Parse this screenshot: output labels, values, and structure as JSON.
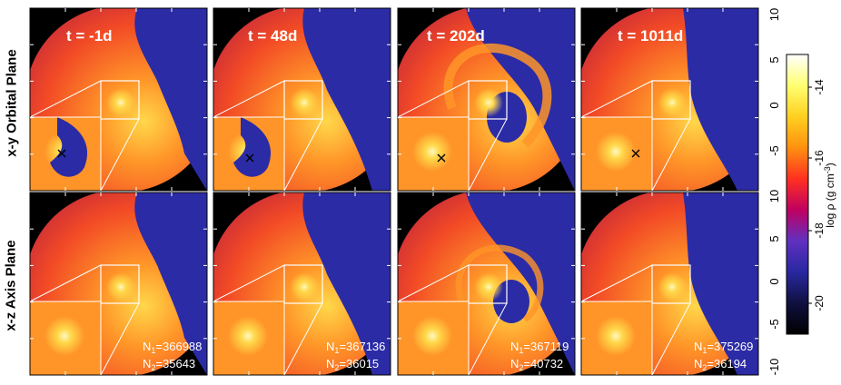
{
  "figure": {
    "rows": [
      {
        "label": "x-y Orbital Plane",
        "panels": [
          {
            "time": "t = -1d"
          },
          {
            "time": "t = 48d"
          },
          {
            "time": "t = 202d"
          },
          {
            "time": "t = 1011d"
          }
        ]
      },
      {
        "label": "x-z Axis Plane",
        "panels": [
          {
            "n1": "366988",
            "n2": "35643"
          },
          {
            "n1": "367136",
            "n2": "36015"
          },
          {
            "n1": "367119",
            "n2": "40732"
          },
          {
            "n1": "375269",
            "n2": "36194"
          }
        ]
      }
    ],
    "n1_prefix": "N",
    "n1_sub": "1",
    "n2_sub": "2",
    "n_eq": "=",
    "axis": {
      "ticks_top": [
        "10",
        "5",
        "0",
        "-5"
      ],
      "ticks_bottom": [
        "10",
        "5",
        "0",
        "-5",
        "-10"
      ]
    },
    "colorbar": {
      "label_main": "log ρ (g cm",
      "label_sup": "-3",
      "label_close": ")",
      "ticks": [
        "-14",
        "-16",
        "-18",
        "-20"
      ],
      "colors": [
        "#ffffff",
        "#ffff70",
        "#ffd020",
        "#ff9010",
        "#ff3020",
        "#c00060",
        "#6030c0",
        "#2828a0",
        "#101040",
        "#000000"
      ]
    },
    "palette": {
      "bg": "#000000",
      "hot": "#fff8c0",
      "yellow": "#ffd84a",
      "orange": "#ff9528",
      "red": "#f24a26",
      "crimson": "#c5283a",
      "blue": "#2b2ba6",
      "dark": "#0b0b2a"
    }
  }
}
